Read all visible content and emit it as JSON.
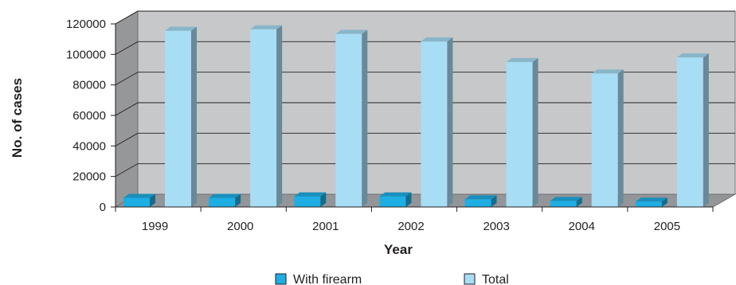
{
  "chart_data": {
    "type": "bar",
    "categories": [
      "1999",
      "2000",
      "2001",
      "2002",
      "2003",
      "2004",
      "2005"
    ],
    "series": [
      {
        "name": "With firearm",
        "values": [
          6000,
          6000,
          7000,
          7000,
          5000,
          4000,
          3500
        ],
        "color": "#1eaee4"
      },
      {
        "name": "Total",
        "values": [
          115500,
          116500,
          113500,
          108500,
          95000,
          87500,
          98000
        ],
        "color": "#a7ddf5"
      }
    ],
    "xlabel": "Year",
    "ylabel": "No. of cases",
    "ylim": [
      0,
      120000
    ],
    "yticks": [
      "0",
      "20000",
      "40000",
      "60000",
      "80000",
      "100000",
      "120000"
    ],
    "grid": true,
    "legend": "bottom",
    "style": "3d",
    "colors": {
      "back_wall": "#c6c8ca",
      "side_wall": "#969799",
      "floor": "#939598",
      "gridline": "#231f20"
    }
  }
}
